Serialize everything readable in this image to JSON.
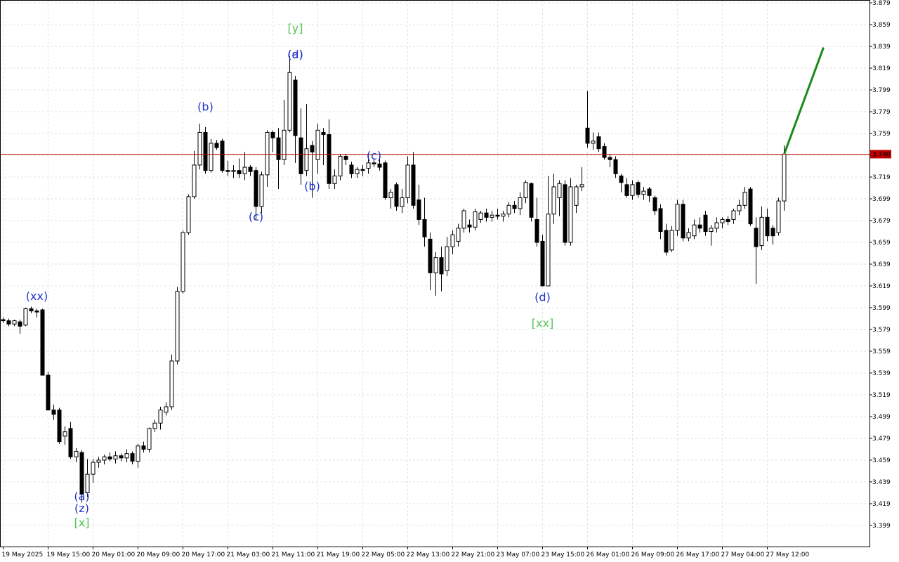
{
  "chart_data": {
    "type": "candlestick",
    "categories": [
      "19 May 2025",
      null,
      null,
      null,
      null,
      null,
      null,
      null,
      "19 May 15:00",
      null,
      null,
      null,
      null,
      null,
      null,
      null,
      "20 May 01:00",
      null,
      null,
      null,
      null,
      null,
      null,
      null,
      "20 May 09:00",
      null,
      null,
      null,
      null,
      null,
      null,
      null,
      "20 May 17:00",
      null,
      null,
      null,
      null,
      null,
      null,
      null,
      "21 May 03:00",
      null,
      null,
      null,
      null,
      null,
      null,
      null,
      "21 May 11:00",
      null,
      null,
      null,
      null,
      null,
      null,
      null,
      "21 May 19:00",
      null,
      null,
      null,
      null,
      null,
      null,
      null,
      "22 May 05:00",
      null,
      null,
      null,
      null,
      null,
      null,
      null,
      "22 May 13:00",
      null,
      null,
      null,
      null,
      null,
      null,
      null,
      "22 May 21:00",
      null,
      null,
      null,
      null,
      null,
      null,
      null,
      "23 May 07:00",
      null,
      null,
      null,
      null,
      null,
      null,
      null,
      "23 May 15:00",
      null,
      null,
      null,
      null,
      null,
      null,
      null,
      "26 May 01:00",
      null,
      null,
      null,
      null,
      null,
      null,
      null,
      "26 May 09:00",
      null,
      null,
      null,
      null,
      null,
      null,
      null,
      "26 May 17:00",
      null,
      null,
      null,
      null,
      null,
      null,
      null,
      "27 May 04:00",
      null,
      null,
      null,
      null,
      null,
      null,
      null,
      "27 May 12:00",
      null,
      null,
      null
    ],
    "ohlc": [
      [
        3.588,
        3.59,
        3.585,
        3.587
      ],
      [
        3.587,
        3.589,
        3.582,
        3.584
      ],
      [
        3.584,
        3.588,
        3.582,
        3.587
      ],
      [
        3.586,
        3.588,
        3.575,
        3.582
      ],
      [
        3.583,
        3.599,
        3.582,
        3.598
      ],
      [
        3.598,
        3.6,
        3.594,
        3.596
      ],
      [
        3.596,
        3.598,
        3.59,
        3.595
      ],
      [
        3.597,
        3.598,
        3.537,
        3.537
      ],
      [
        3.537,
        3.54,
        3.505,
        3.505
      ],
      [
        3.505,
        3.51,
        3.496,
        3.501
      ],
      [
        3.505,
        3.507,
        3.474,
        3.476
      ],
      [
        3.481,
        3.49,
        3.473,
        3.485
      ],
      [
        3.488,
        3.494,
        3.46,
        3.462
      ],
      [
        3.462,
        3.47,
        3.457,
        3.467
      ],
      [
        3.466,
        3.468,
        3.42,
        3.428
      ],
      [
        3.429,
        3.46,
        3.425,
        3.446
      ],
      [
        3.446,
        3.46,
        3.438,
        3.457
      ],
      [
        3.457,
        3.462,
        3.452,
        3.459
      ],
      [
        3.459,
        3.464,
        3.455,
        3.462
      ],
      [
        3.462,
        3.466,
        3.458,
        3.46
      ],
      [
        3.46,
        3.467,
        3.456,
        3.463
      ],
      [
        3.463,
        3.465,
        3.458,
        3.461
      ],
      [
        3.461,
        3.469,
        3.457,
        3.465
      ],
      [
        3.465,
        3.467,
        3.455,
        3.458
      ],
      [
        3.458,
        3.474,
        3.452,
        3.472
      ],
      [
        3.472,
        3.476,
        3.466,
        3.469
      ],
      [
        3.469,
        3.489,
        3.466,
        3.488
      ],
      [
        3.488,
        3.496,
        3.485,
        3.493
      ],
      [
        3.493,
        3.508,
        3.487,
        3.505
      ],
      [
        3.503,
        3.512,
        3.5,
        3.508
      ],
      [
        3.508,
        3.556,
        3.505,
        3.55
      ],
      [
        3.55,
        3.618,
        3.547,
        3.614
      ],
      [
        3.614,
        3.67,
        3.612,
        3.668
      ],
      [
        3.668,
        3.703,
        3.666,
        3.701
      ],
      [
        3.701,
        3.743,
        3.699,
        3.73
      ],
      [
        3.73,
        3.768,
        3.726,
        3.76
      ],
      [
        3.76,
        3.765,
        3.722,
        3.725
      ],
      [
        3.725,
        3.754,
        3.723,
        3.75
      ],
      [
        3.75,
        3.753,
        3.744,
        3.746
      ],
      [
        3.752,
        3.754,
        3.723,
        3.725
      ],
      [
        3.725,
        3.734,
        3.72,
        3.724
      ],
      [
        3.724,
        3.73,
        3.718,
        3.725
      ],
      [
        3.725,
        3.736,
        3.718,
        3.722
      ],
      [
        3.722,
        3.742,
        3.716,
        3.728
      ],
      [
        3.728,
        3.73,
        3.72,
        3.724
      ],
      [
        3.725,
        3.728,
        3.68,
        3.692
      ],
      [
        3.692,
        3.724,
        3.686,
        3.721
      ],
      [
        3.721,
        3.762,
        3.71,
        3.76
      ],
      [
        3.76,
        3.762,
        3.742,
        3.755
      ],
      [
        3.755,
        3.764,
        3.708,
        3.735
      ],
      [
        3.735,
        3.79,
        3.73,
        3.762
      ],
      [
        3.762,
        3.83,
        3.76,
        3.815
      ],
      [
        3.808,
        3.812,
        3.732,
        3.757
      ],
      [
        3.755,
        3.782,
        3.712,
        3.722
      ],
      [
        3.725,
        3.786,
        3.72,
        3.745
      ],
      [
        3.748,
        3.752,
        3.7,
        3.742
      ],
      [
        3.735,
        3.768,
        3.722,
        3.762
      ],
      [
        3.76,
        3.764,
        3.73,
        3.758
      ],
      [
        3.758,
        3.772,
        3.708,
        3.713
      ],
      [
        3.713,
        3.726,
        3.708,
        3.72
      ],
      [
        3.72,
        3.74,
        3.716,
        3.738
      ],
      [
        3.738,
        3.74,
        3.73,
        3.735
      ],
      [
        3.73,
        3.733,
        3.718,
        3.722
      ],
      [
        3.722,
        3.728,
        3.718,
        3.726
      ],
      [
        3.726,
        3.73,
        3.72,
        3.725
      ],
      [
        3.727,
        3.74,
        3.722,
        3.732
      ],
      [
        3.732,
        3.736,
        3.728,
        3.731
      ],
      [
        3.731,
        3.738,
        3.725,
        3.728
      ],
      [
        3.732,
        3.734,
        3.698,
        3.7
      ],
      [
        3.7,
        3.708,
        3.69,
        3.705
      ],
      [
        3.712,
        3.714,
        3.688,
        3.692
      ],
      [
        3.692,
        3.708,
        3.686,
        3.7
      ],
      [
        3.7,
        3.738,
        3.695,
        3.73
      ],
      [
        3.73,
        3.742,
        3.69,
        3.693
      ],
      [
        3.698,
        3.712,
        3.675,
        3.68
      ],
      [
        3.68,
        3.7,
        3.655,
        3.664
      ],
      [
        3.662,
        3.668,
        3.615,
        3.631
      ],
      [
        3.631,
        3.65,
        3.61,
        3.645
      ],
      [
        3.645,
        3.655,
        3.614,
        3.63
      ],
      [
        3.633,
        3.664,
        3.628,
        3.655
      ],
      [
        3.655,
        3.67,
        3.648,
        3.666
      ],
      [
        3.66,
        3.676,
        3.655,
        3.672
      ],
      [
        3.672,
        3.69,
        3.668,
        3.688
      ],
      [
        3.675,
        3.68,
        3.668,
        3.673
      ],
      [
        3.673,
        3.69,
        3.67,
        3.687
      ],
      [
        3.68,
        3.688,
        3.677,
        3.686
      ],
      [
        3.686,
        3.69,
        3.678,
        3.682
      ],
      [
        3.682,
        3.688,
        3.678,
        3.684
      ],
      [
        3.684,
        3.69,
        3.68,
        3.683
      ],
      [
        3.683,
        3.688,
        3.678,
        3.685
      ],
      [
        3.685,
        3.696,
        3.682,
        3.693
      ],
      [
        3.693,
        3.697,
        3.686,
        3.69
      ],
      [
        3.69,
        3.705,
        3.684,
        3.7
      ],
      [
        3.7,
        3.716,
        3.695,
        3.714
      ],
      [
        3.713,
        3.714,
        3.678,
        3.682
      ],
      [
        3.68,
        3.7,
        3.655,
        3.659
      ],
      [
        3.66,
        3.666,
        3.619,
        3.619
      ],
      [
        3.619,
        3.72,
        3.619,
        3.685
      ],
      [
        3.685,
        3.722,
        3.676,
        3.71
      ],
      [
        3.7,
        3.716,
        3.683,
        3.713
      ],
      [
        3.712,
        3.716,
        3.656,
        3.659
      ],
      [
        3.659,
        3.718,
        3.656,
        3.71
      ],
      [
        3.693,
        3.712,
        3.686,
        3.71
      ],
      [
        3.71,
        3.728,
        3.706,
        3.712
      ],
      [
        3.764,
        3.798,
        3.746,
        3.75
      ],
      [
        3.75,
        3.76,
        3.744,
        3.752
      ],
      [
        3.756,
        3.76,
        3.742,
        3.745
      ],
      [
        3.747,
        3.75,
        3.735,
        3.737
      ],
      [
        3.737,
        3.74,
        3.728,
        3.735
      ],
      [
        3.735,
        3.738,
        3.718,
        3.722
      ],
      [
        3.72,
        3.722,
        3.705,
        3.714
      ],
      [
        3.712,
        3.718,
        3.7,
        3.702
      ],
      [
        3.702,
        3.716,
        3.698,
        3.712
      ],
      [
        3.714,
        3.716,
        3.7,
        3.703
      ],
      [
        3.703,
        3.71,
        3.698,
        3.706
      ],
      [
        3.708,
        3.71,
        3.696,
        3.702
      ],
      [
        3.7,
        3.702,
        3.684,
        3.688
      ],
      [
        3.69,
        3.694,
        3.662,
        3.669
      ],
      [
        3.67,
        3.676,
        3.647,
        3.65
      ],
      [
        3.652,
        3.674,
        3.65,
        3.67
      ],
      [
        3.67,
        3.698,
        3.665,
        3.694
      ],
      [
        3.694,
        3.698,
        3.66,
        3.663
      ],
      [
        3.663,
        3.672,
        3.66,
        3.668
      ],
      [
        3.665,
        3.68,
        3.662,
        3.675
      ],
      [
        3.675,
        3.682,
        3.668,
        3.672
      ],
      [
        3.684,
        3.688,
        3.665,
        3.669
      ],
      [
        3.669,
        3.675,
        3.656,
        3.672
      ],
      [
        3.672,
        3.682,
        3.668,
        3.677
      ],
      [
        3.677,
        3.682,
        3.672,
        3.68
      ],
      [
        3.68,
        3.683,
        3.675,
        3.678
      ],
      [
        3.68,
        3.69,
        3.676,
        3.688
      ],
      [
        3.688,
        3.698,
        3.684,
        3.693
      ],
      [
        3.693,
        3.71,
        3.69,
        3.705
      ],
      [
        3.708,
        3.71,
        3.674,
        3.676
      ],
      [
        3.672,
        3.682,
        3.621,
        3.655
      ],
      [
        3.656,
        3.692,
        3.652,
        3.682
      ],
      [
        3.682,
        3.69,
        3.66,
        3.665
      ],
      [
        3.672,
        3.675,
        3.657,
        3.665
      ],
      [
        3.668,
        3.7,
        3.665,
        3.697
      ],
      [
        3.697,
        3.748,
        3.688,
        3.74
      ]
    ],
    "bull_color": "#ffffff",
    "bear_color": "#000000",
    "wick_color": "#000000",
    "ylim": [
      3.3796,
      3.8816
    ],
    "yticks": [
      3.399,
      3.419,
      3.439,
      3.459,
      3.479,
      3.499,
      3.519,
      3.539,
      3.559,
      3.579,
      3.599,
      3.619,
      3.639,
      3.659,
      3.679,
      3.699,
      3.719,
      3.739,
      3.759,
      3.779,
      3.799,
      3.819,
      3.839,
      3.859,
      3.879
    ],
    "grid": true,
    "current_price": {
      "value": 3.74,
      "label": "3.740",
      "color": "#c00000"
    },
    "forecast": {
      "x": [
        139,
        146
      ],
      "y": [
        3.74,
        3.838
      ],
      "color": "#1a8a1a"
    },
    "annotations": [
      {
        "text": "(xx)",
        "x": 6,
        "y": 3.61,
        "color": "#2233cc"
      },
      {
        "text": "(a)",
        "x": 14,
        "y": 3.426,
        "color": "#2233cc"
      },
      {
        "text": "(z)",
        "x": 14,
        "y": 3.415,
        "color": "#2233cc"
      },
      {
        "text": "[x]",
        "x": 14,
        "y": 3.402,
        "color": "#55c455"
      },
      {
        "text": "(b)",
        "x": 36,
        "y": 3.784,
        "color": "#2233cc"
      },
      {
        "text": "(c)",
        "x": 45,
        "y": 3.683,
        "color": "#2233cc"
      },
      {
        "text": "[y]",
        "x": 52,
        "y": 3.856,
        "color": "#55c455"
      },
      {
        "text": "(a)",
        "x": 52,
        "y": 3.832,
        "color": "#2233cc"
      },
      {
        "text": "(d)",
        "x": 52,
        "y": 3.832,
        "color": "#2233cc"
      },
      {
        "text": "(b)",
        "x": 55,
        "y": 3.711,
        "color": "#2233cc"
      },
      {
        "text": "(c)",
        "x": 66,
        "y": 3.739,
        "color": "#2233cc"
      },
      {
        "text": "(d)",
        "x": 96,
        "y": 3.609,
        "color": "#2233cc"
      },
      {
        "text": "[xx]",
        "x": 96,
        "y": 3.585,
        "color": "#55c455"
      }
    ]
  }
}
